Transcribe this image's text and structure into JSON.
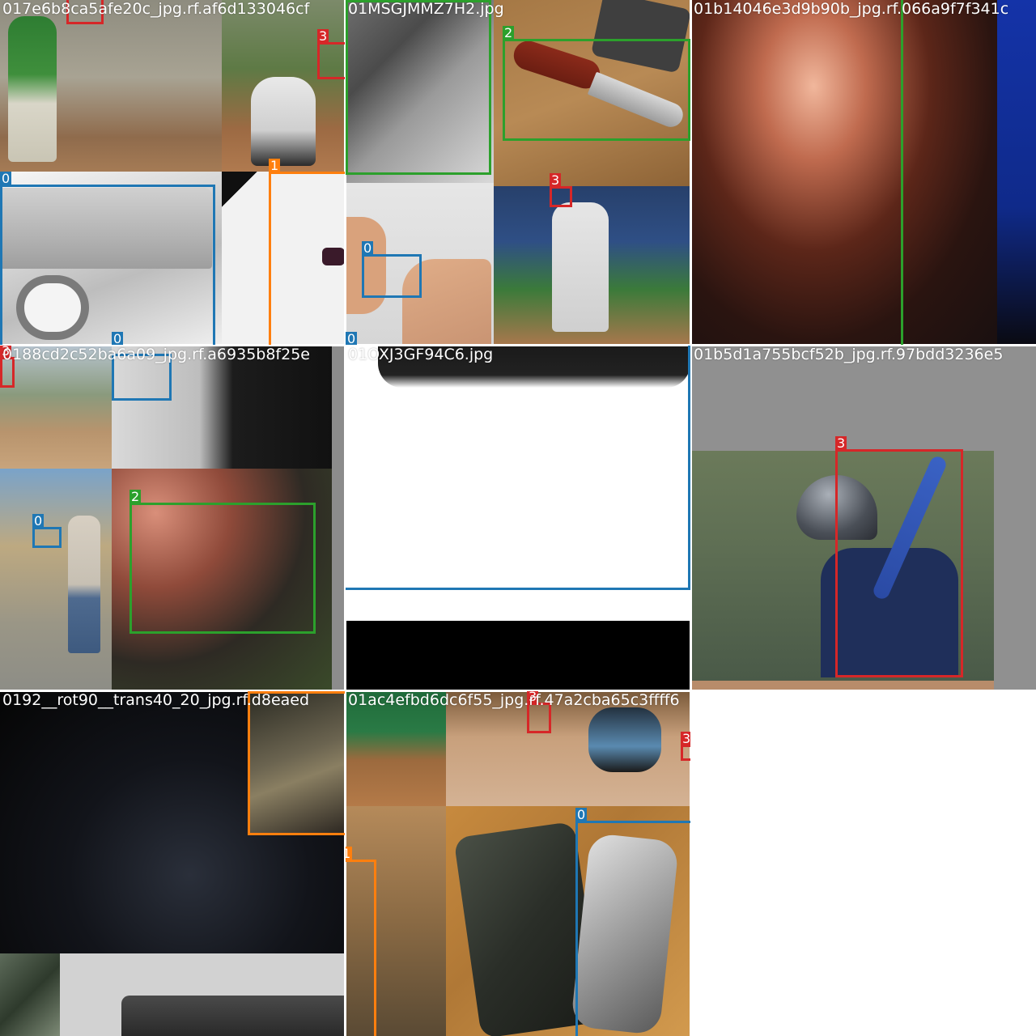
{
  "mosaic": {
    "class_colors": {
      "0": "#1f77b4",
      "1": "#ff7f0e",
      "2": "#2ca02c",
      "3": "#d62728"
    },
    "cells": [
      {
        "title": "017e6b8ca5afe20c_jpg.rf.af6d133046cf",
        "boxes": [
          {
            "label": "3",
            "class": "3"
          },
          {
            "label": "3",
            "class": "3"
          },
          {
            "label": "0",
            "class": "0"
          },
          {
            "label": "0",
            "class": "0"
          },
          {
            "label": "1",
            "class": "1"
          }
        ]
      },
      {
        "title": "01MSGJMMZ7H2.jpg",
        "boxes": [
          {
            "label": "2",
            "class": "2"
          },
          {
            "label": "3",
            "class": "3"
          },
          {
            "label": "0",
            "class": "0"
          },
          {
            "label": "0",
            "class": "0"
          }
        ]
      },
      {
        "title": "01b14046e3d9b90b_jpg.rf.066a9f7f341c",
        "boxes": [
          {
            "label": "",
            "class": "2"
          }
        ]
      },
      {
        "title": "0188cd2c52ba6a09_jpg.rf.a6935b8f25e",
        "boxes": [
          {
            "label": "3",
            "class": "3"
          },
          {
            "label": "",
            "class": "0"
          },
          {
            "label": "0",
            "class": "0"
          },
          {
            "label": "2",
            "class": "2"
          }
        ]
      },
      {
        "title": "01OXJ3GF94C6.jpg",
        "boxes": [
          {
            "label": "",
            "class": "0"
          }
        ]
      },
      {
        "title": "01b5d1a755bcf52b_jpg.rf.97bdd3236e5",
        "boxes": [
          {
            "label": "3",
            "class": "3"
          }
        ]
      },
      {
        "title": "0192__rot90__trans40_20_jpg.rf.d8eaed",
        "boxes": [
          {
            "label": "1",
            "class": "1"
          }
        ]
      },
      {
        "title": "01ac4efbd6dc6f55_jpg.rf.47a2cba65c3ffff6",
        "boxes": [
          {
            "label": "3",
            "class": "3"
          },
          {
            "label": "3",
            "class": "3"
          },
          {
            "label": "0",
            "class": "0"
          },
          {
            "label": "1",
            "class": "1"
          }
        ]
      }
    ]
  }
}
